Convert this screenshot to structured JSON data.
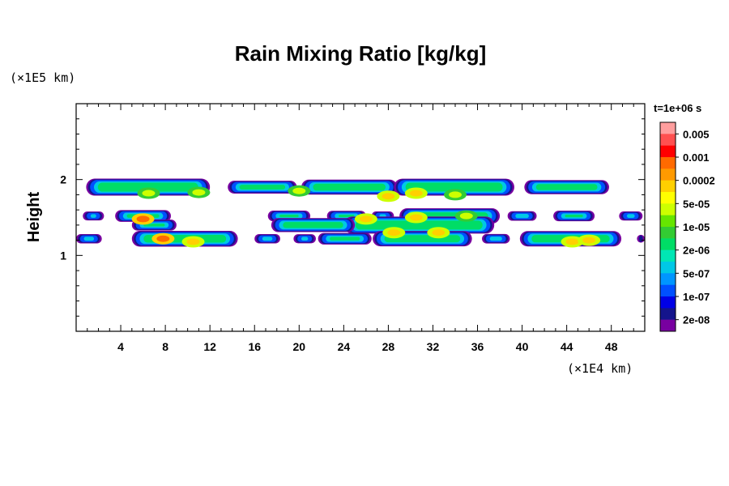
{
  "chart_data": {
    "type": "heatmap",
    "title": "Rain Mixing Ratio [kg/kg]",
    "ylabel": "Height",
    "y_unit": "(×1E5 km)",
    "x_unit": "(×1E4 km)",
    "time_label": "t=1e+06 s",
    "x_ticks": [
      "4",
      "8",
      "12",
      "16",
      "20",
      "24",
      "28",
      "32",
      "36",
      "40",
      "44",
      "48"
    ],
    "x_tick_values": [
      4,
      8,
      12,
      16,
      20,
      24,
      28,
      32,
      36,
      40,
      44,
      48
    ],
    "y_ticks": [
      "1",
      "2"
    ],
    "y_tick_values": [
      1,
      2
    ],
    "xlim": [
      0,
      51
    ],
    "ylim": [
      0,
      3
    ],
    "colorbar": {
      "levels": [
        "0.005",
        "0.001",
        "0.0002",
        "5e-05",
        "1e-05",
        "2e-06",
        "5e-07",
        "1e-07",
        "2e-08"
      ],
      "colors": [
        "#ff9e9e",
        "#ff5050",
        "#ff0000",
        "#ff6a00",
        "#ff9a00",
        "#ffd000",
        "#ffff00",
        "#cdff00",
        "#66e600",
        "#33cc33",
        "#00dd66",
        "#00e6b4",
        "#00c8e6",
        "#0096ff",
        "#0050ff",
        "#0000e6",
        "#14148c",
        "#7800a0"
      ]
    },
    "bands": [
      {
        "y": 1.9,
        "segments": [
          [
            0.9,
            12
          ],
          [
            13.6,
            19.8
          ],
          [
            20.2,
            28.8
          ],
          [
            28.5,
            39.3
          ],
          [
            40.2,
            47.8
          ]
        ]
      },
      {
        "y": 1.52,
        "segments": [
          [
            0.6,
            2.5
          ],
          [
            3.5,
            8.5
          ],
          [
            17.2,
            21
          ],
          [
            22.5,
            26
          ],
          [
            26.5,
            28.5
          ],
          [
            29,
            38
          ],
          [
            38.7,
            41.3
          ],
          [
            42.8,
            46.5
          ],
          [
            48.7,
            50.8
          ]
        ]
      },
      {
        "y": 1.4,
        "segments": [
          [
            5,
            9
          ],
          [
            24,
            37.5
          ],
          [
            17.5,
            25
          ]
        ]
      },
      {
        "y": 1.22,
        "segments": [
          [
            0,
            2.3
          ],
          [
            5,
            14.5
          ],
          [
            16,
            18.3
          ],
          [
            19.5,
            21.5
          ],
          [
            21.7,
            26.5
          ],
          [
            26.6,
            35.5
          ],
          [
            36.4,
            38.9
          ],
          [
            39.8,
            48.9
          ],
          [
            50.3,
            51
          ]
        ]
      }
    ],
    "hotspots": [
      {
        "x": 6.0,
        "y": 1.48,
        "level": "0.0002"
      },
      {
        "x": 7.8,
        "y": 1.22,
        "level": "0.0002"
      },
      {
        "x": 10.5,
        "y": 1.18,
        "level": "5e-05"
      },
      {
        "x": 6.5,
        "y": 1.82,
        "level": "1e-05"
      },
      {
        "x": 11.0,
        "y": 1.83,
        "level": "1e-05"
      },
      {
        "x": 30.5,
        "y": 1.82,
        "level": "5e-05"
      },
      {
        "x": 28.0,
        "y": 1.78,
        "level": "5e-05"
      },
      {
        "x": 34.0,
        "y": 1.8,
        "level": "1e-05"
      },
      {
        "x": 26.0,
        "y": 1.48,
        "level": "5e-05"
      },
      {
        "x": 30.5,
        "y": 1.5,
        "level": "5e-05"
      },
      {
        "x": 28.5,
        "y": 1.3,
        "level": "5e-05"
      },
      {
        "x": 32.5,
        "y": 1.3,
        "level": "5e-05"
      },
      {
        "x": 44.5,
        "y": 1.18,
        "level": "5e-05"
      },
      {
        "x": 46.0,
        "y": 1.2,
        "level": "5e-05"
      },
      {
        "x": 20.0,
        "y": 1.85,
        "level": "1e-05"
      },
      {
        "x": 35.0,
        "y": 1.52,
        "level": "1e-05"
      }
    ]
  }
}
